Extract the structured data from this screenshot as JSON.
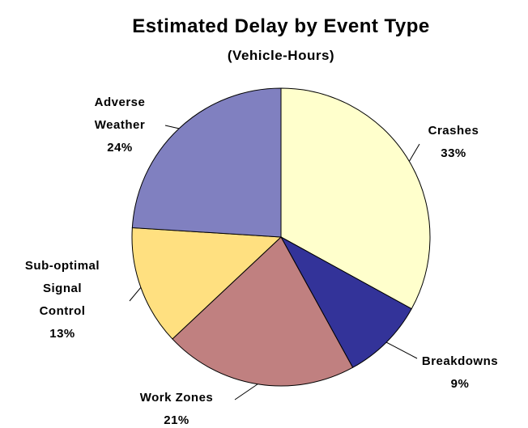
{
  "chart_data": {
    "type": "pie",
    "title": "Estimated Delay by Event Type",
    "subtitle": "(Vehicle-Hours)",
    "categories": [
      "Crashes",
      "Breakdowns",
      "Work Zones",
      "Sub-optimal\nSignal\nControl",
      "Adverse\nWeather"
    ],
    "values": [
      33,
      9,
      21,
      13,
      24
    ],
    "value_labels": [
      "33%",
      "9%",
      "21%",
      "13%",
      "24%"
    ],
    "colors": [
      "#ffffcc",
      "#333399",
      "#c08080",
      "#ffe080",
      "#8080c0"
    ]
  }
}
